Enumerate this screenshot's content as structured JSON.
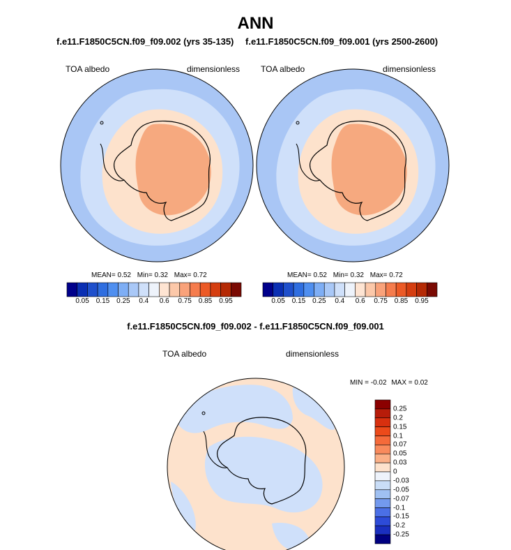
{
  "figure": {
    "title": "ANN",
    "left_subtitle": "f.e11.F1850C5CN.f09_f09.002 (yrs 35-135)",
    "right_subtitle": "f.e11.F1850C5CN.f09_f09.001 (yrs 2500-2600)",
    "diff_subtitle": "f.e11.F1850C5CN.f09_f09.002 - f.e11.F1850C5CN.f09_f09.001"
  },
  "chart_data": [
    {
      "type": "heatmap",
      "projection": "south-polar-stereographic",
      "variable": "TOA albedo",
      "units": "dimensionless",
      "stats": {
        "mean_label": "MEAN=",
        "mean": "0.52",
        "min_label": "Min=",
        "min": "0.32",
        "max_label": "Max=",
        "max": "0.72"
      },
      "colorbar": {
        "orientation": "horizontal",
        "colors": [
          "#00008b",
          "#0a2fb3",
          "#1f50cc",
          "#2f6ee0",
          "#4f8ff0",
          "#7eaef5",
          "#a9c8f7",
          "#cfe0fa",
          "#eef3fb",
          "#fee4d2",
          "#fcc8a9",
          "#f9a27a",
          "#f57c4d",
          "#ec5a26",
          "#d53e10",
          "#b52a05",
          "#7a0a03"
        ],
        "tick_labels": [
          "0.05",
          "0.15",
          "0.25",
          "0.4",
          "0.6",
          "0.75",
          "0.85",
          "0.95"
        ]
      }
    },
    {
      "type": "heatmap",
      "projection": "south-polar-stereographic",
      "variable": "TOA albedo",
      "units": "dimensionless",
      "stats": {
        "mean_label": "MEAN=",
        "mean": "0.52",
        "min_label": "Min=",
        "min": "0.32",
        "max_label": "Max=",
        "max": "0.72"
      },
      "colorbar": {
        "orientation": "horizontal",
        "colors": [
          "#00008b",
          "#0a2fb3",
          "#1f50cc",
          "#2f6ee0",
          "#4f8ff0",
          "#7eaef5",
          "#a9c8f7",
          "#cfe0fa",
          "#eef3fb",
          "#fee4d2",
          "#fcc8a9",
          "#f9a27a",
          "#f57c4d",
          "#ec5a26",
          "#d53e10",
          "#b52a05",
          "#7a0a03"
        ],
        "tick_labels": [
          "0.05",
          "0.15",
          "0.25",
          "0.4",
          "0.6",
          "0.75",
          "0.85",
          "0.95"
        ]
      }
    },
    {
      "type": "heatmap",
      "projection": "south-polar-stereographic",
      "variable": "TOA albedo",
      "units": "dimensionless",
      "stats": {
        "min_label": "MIN =",
        "min": "-0.02",
        "max_label": "MAX =",
        "max": "0.02"
      },
      "colorbar": {
        "orientation": "vertical",
        "colors_top_to_bottom": [
          "#8b0000",
          "#b71c0a",
          "#d8300f",
          "#ec4a1a",
          "#f56a3a",
          "#f98a5c",
          "#fbb087",
          "#fde2cc",
          "#eef3fb",
          "#c9ddf7",
          "#9fc0f2",
          "#7399ee",
          "#4b6fe6",
          "#2d4bd8",
          "#1a2fbf",
          "#000080"
        ],
        "tick_labels_top_to_bottom": [
          "0.25",
          "0.2",
          "0.15",
          "0.1",
          "0.07",
          "0.05",
          "0.03",
          "0",
          "-0.03",
          "-0.05",
          "-0.07",
          "-0.1",
          "-0.15",
          "-0.2",
          "-0.25"
        ]
      }
    }
  ]
}
